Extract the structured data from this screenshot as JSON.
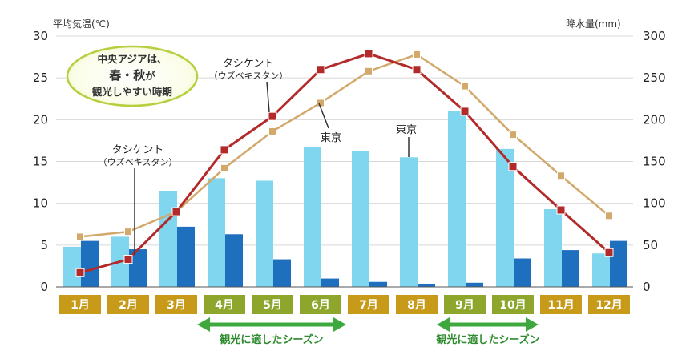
{
  "chart_data": {
    "type": "bar+line",
    "categories": [
      "1月",
      "2月",
      "3月",
      "4月",
      "5月",
      "6月",
      "7月",
      "8月",
      "9月",
      "10月",
      "11月",
      "12月"
    ],
    "left_axis": {
      "label": "平均気温(℃)",
      "ylim": [
        0,
        30
      ],
      "ticks": [
        "0",
        "5",
        "10",
        "15",
        "20",
        "25",
        "30"
      ]
    },
    "right_axis": {
      "label": "降水量(mm)",
      "ylim": [
        0,
        300
      ],
      "ticks": [
        "0",
        "50",
        "100",
        "150",
        "200",
        "250",
        "300"
      ]
    },
    "bars": [
      {
        "name": "東京",
        "axis": "right",
        "color": "#7fd6ee",
        "values": [
          48,
          60,
          115,
          130,
          127,
          167,
          162,
          155,
          210,
          165,
          93,
          40
        ]
      },
      {
        "name": "タシケント",
        "axis": "right",
        "color": "#1f6fbf",
        "values": [
          55,
          45,
          72,
          63,
          33,
          10,
          6,
          3,
          5,
          34,
          44,
          55
        ]
      }
    ],
    "lines": [
      {
        "name": "東京",
        "axis": "left",
        "color": "#d2a96a",
        "values": [
          6.0,
          6.6,
          9.0,
          14.2,
          18.6,
          22.0,
          25.8,
          27.8,
          24.0,
          18.2,
          13.3,
          8.5
        ]
      },
      {
        "name": "タシケント",
        "axis": "left",
        "color": "#b22a2a",
        "values": [
          1.7,
          3.3,
          9.0,
          16.4,
          20.4,
          26.0,
          27.9,
          26.0,
          21.0,
          14.4,
          9.2,
          4.1
        ]
      }
    ],
    "month_colors": [
      "#c79a1a",
      "#c79a1a",
      "#c79a1a",
      "#8fa62d",
      "#8fa62d",
      "#8fa62d",
      "#c79a1a",
      "#c79a1a",
      "#8fa62d",
      "#8fa62d",
      "#c79a1a",
      "#c79a1a"
    ],
    "annotations": {
      "callout_line1": "中央アジアは、",
      "callout_line2": "春・秋",
      "callout_line2_suffix": "が",
      "callout_line3": "観光しやすい時期",
      "tashkent_label": "タシケント",
      "tashkent_sub": "（ウズベキスタン）",
      "tokyo_label": "東京",
      "season_text": "観光に適したシーズン"
    }
  }
}
